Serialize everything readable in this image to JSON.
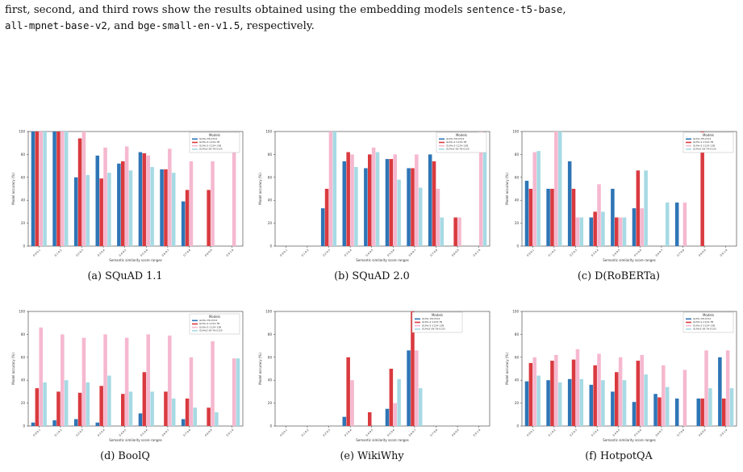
{
  "intro": {
    "p1": "first, second, and third rows show the results obtained using the embedding models ",
    "m1": "sentence-t5-base",
    "p2": ",",
    "m2": "all-mpnet-base-v2",
    "p3": ", and ",
    "m3": "bge-small-en-v1.5",
    "p4": ", respectively."
  },
  "colors": [
    "#2e75b6",
    "#d93a3f",
    "#f5b8cf",
    "#a6dae4"
  ],
  "shared": {
    "ylabel": "Model accuracy (%)",
    "xlabel": "Semantic similarity score ranges",
    "legend_title": "Models",
    "yticks": [
      "0",
      "20",
      "40",
      "60",
      "80",
      "100"
    ]
  },
  "chart_data": [
    {
      "type": "bar",
      "caption": "(a) SQuAD 1.1",
      "categories": [
        "0.0-0.1",
        "0.1-0.2",
        "0.2-0.3",
        "0.3-0.4",
        "0.4-0.5",
        "0.5-0.6",
        "0.6-0.7",
        "0.7-0.8",
        "0.8-0.9",
        "0.9-1.0"
      ],
      "legend": [
        "GLMo-7B-0724",
        "GLMo-2-1124-7B",
        "GLMo-2-1124-13B",
        "GLMo2-38-78-0125"
      ],
      "series": [
        {
          "values": [
            100,
            100,
            60,
            79,
            72,
            82,
            67,
            39,
            0,
            0
          ]
        },
        {
          "values": [
            100,
            100,
            94,
            59,
            74,
            81,
            67,
            49,
            49,
            0
          ]
        },
        {
          "values": [
            100,
            100,
            100,
            86,
            87,
            79,
            85,
            74,
            74,
            82
          ]
        },
        {
          "values": [
            100,
            100,
            62,
            64,
            66,
            69,
            64,
            0,
            0,
            0
          ]
        }
      ]
    },
    {
      "type": "bar",
      "caption": "(b) SQuAD 2.0",
      "categories": [
        "0.0-0.1",
        "0.1-0.2",
        "0.2-0.3",
        "0.3-0.4",
        "0.4-0.5",
        "0.5-0.6",
        "0.6-0.7",
        "0.7-0.8",
        "0.8-0.9",
        "0.9-1.0"
      ],
      "legend": [
        "GLMo-7B-0724",
        "GLMo-2-1124-7B",
        "GLMo-2-1124-13B",
        "GLMo2-38-78-0125"
      ],
      "series": [
        {
          "values": [
            0,
            0,
            33,
            74,
            68,
            76,
            68,
            80,
            0,
            0
          ]
        },
        {
          "values": [
            0,
            0,
            50,
            82,
            80,
            76,
            68,
            74,
            25,
            0
          ]
        },
        {
          "values": [
            0,
            0,
            100,
            80,
            86,
            80,
            80,
            50,
            25,
            100
          ]
        },
        {
          "values": [
            0,
            0,
            100,
            69,
            82,
            58,
            51,
            25,
            0,
            82
          ]
        }
      ]
    },
    {
      "type": "bar",
      "caption": "(c) D(RoBERTa)",
      "categories": [
        "0.0-0.1",
        "0.1-0.2",
        "0.2-0.3",
        "0.3-0.4",
        "0.4-0.5",
        "0.5-0.6",
        "0.6-0.7",
        "0.7-0.8",
        "0.8-0.9",
        "0.9-1.0"
      ],
      "legend": [
        "GLMo-7B-0724",
        "GLMo-2-1124-7B",
        "GLMo-2-1124-13B",
        "GLMo2-38-78-0125"
      ],
      "series": [
        {
          "values": [
            57,
            50,
            74,
            25,
            50,
            33,
            0,
            38,
            0,
            0
          ]
        },
        {
          "values": [
            50,
            50,
            50,
            30,
            25,
            66,
            0,
            0,
            100,
            0
          ]
        },
        {
          "values": [
            82,
            100,
            25,
            54,
            25,
            33,
            0,
            38,
            0,
            0
          ]
        },
        {
          "values": [
            83,
            100,
            25,
            30,
            25,
            66,
            38,
            0,
            0,
            0
          ]
        }
      ]
    },
    {
      "type": "bar",
      "caption": "(d) BoolQ",
      "categories": [
        "0.0-0.1",
        "0.1-0.2",
        "0.2-0.3",
        "0.3-0.4",
        "0.4-0.5",
        "0.5-0.6",
        "0.6-0.7",
        "0.7-0.8",
        "0.8-0.9",
        "0.9-1.0"
      ],
      "legend": [
        "GLMo-7B-0724",
        "GLMo-2-1124-7B",
        "GLMo-2-1124-13B",
        "GLMo2-38-78-0125"
      ],
      "series": [
        {
          "values": [
            3,
            5,
            6,
            3,
            0,
            11,
            0,
            6,
            0,
            0
          ]
        },
        {
          "values": [
            33,
            30,
            29,
            35,
            28,
            47,
            30,
            24,
            16,
            0
          ]
        },
        {
          "values": [
            86,
            80,
            77,
            80,
            77,
            80,
            79,
            60,
            74,
            59
          ]
        },
        {
          "values": [
            38,
            40,
            38,
            44,
            30,
            30,
            24,
            16,
            12,
            59
          ]
        }
      ]
    },
    {
      "type": "bar",
      "caption": "(e) WikiWhy",
      "categories": [
        "0.0-0.1",
        "0.1-0.2",
        "0.2-0.3",
        "0.3-0.4",
        "0.4-0.5",
        "0.5-0.6",
        "0.6-0.7",
        "0.7-0.8",
        "0.8-0.9",
        "0.9-1.0"
      ],
      "legend": [
        "GLMo-7B-0724",
        "GLMo-2-1124-7B",
        "GLMo-2-1124-13B",
        "GLMo2-38-78-0125"
      ],
      "series": [
        {
          "values": [
            0,
            0,
            0,
            8,
            0,
            15,
            66,
            0,
            0,
            0
          ]
        },
        {
          "values": [
            0,
            0,
            0,
            60,
            12,
            50,
            100,
            0,
            0,
            0
          ]
        },
        {
          "values": [
            0,
            0,
            0,
            40,
            0,
            20,
            66,
            0,
            0,
            0
          ]
        },
        {
          "values": [
            0,
            0,
            0,
            0,
            0,
            41,
            33,
            0,
            0,
            0
          ]
        }
      ]
    },
    {
      "type": "bar",
      "caption": "(f) HotpotQA",
      "categories": [
        "0.0-0.1",
        "0.1-0.2",
        "0.2-0.3",
        "0.3-0.4",
        "0.4-0.5",
        "0.5-0.6",
        "0.6-0.7",
        "0.7-0.8",
        "0.8-0.9",
        "0.9-1.0"
      ],
      "legend": [
        "GLMo-7B-0724",
        "GLMo-2-1124-7B",
        "GLMo-2-1124-13B",
        "GLMo2-38-78-0125"
      ],
      "series": [
        {
          "values": [
            39,
            40,
            41,
            36,
            30,
            21,
            28,
            24,
            24,
            60
          ]
        },
        {
          "values": [
            55,
            57,
            58,
            53,
            47,
            57,
            25,
            0,
            24,
            24
          ]
        },
        {
          "values": [
            60,
            62,
            67,
            63,
            60,
            62,
            53,
            49,
            66,
            66
          ]
        },
        {
          "values": [
            44,
            38,
            41,
            40,
            40,
            45,
            34,
            0,
            33,
            33
          ]
        }
      ]
    }
  ]
}
